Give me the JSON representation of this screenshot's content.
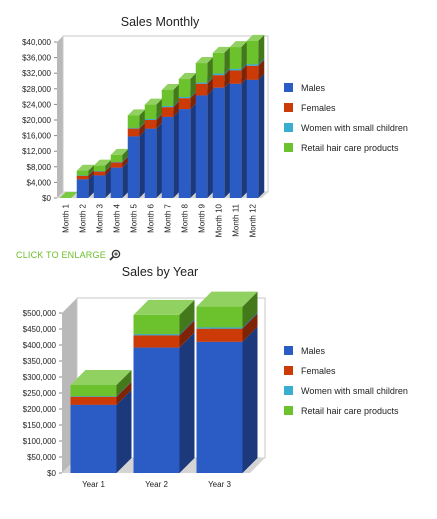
{
  "chart_data": [
    {
      "type": "bar",
      "stacked": true,
      "three_d": true,
      "title": "Sales Monthly",
      "categories": [
        "Month 1",
        "Month 2",
        "Month 3",
        "Month 4",
        "Month 5",
        "Month 6",
        "Month 7",
        "Month 8",
        "Month 9",
        "Month 10",
        "Month 11",
        "Month 12"
      ],
      "ylim": [
        0,
        40000
      ],
      "yticks": [
        "$0",
        "$4,000",
        "$8,000",
        "$12,000",
        "$16,000",
        "$20,000",
        "$24,000",
        "$28,000",
        "$32,000",
        "$36,000",
        "$40,000"
      ],
      "series": [
        {
          "name": "Males",
          "values": [
            0,
            4800,
            5800,
            7800,
            15800,
            17800,
            20800,
            22800,
            26300,
            28300,
            29300,
            30300
          ]
        },
        {
          "name": "Females",
          "values": [
            0,
            900,
            1000,
            1300,
            2000,
            2200,
            2500,
            2800,
            3000,
            3200,
            3400,
            3600
          ]
        },
        {
          "name": "Women with small children",
          "values": [
            0,
            100,
            100,
            150,
            200,
            250,
            300,
            300,
            300,
            400,
            400,
            400
          ]
        },
        {
          "name": "Retail hair care products",
          "values": [
            0,
            1200,
            1400,
            1800,
            3200,
            3700,
            4100,
            4600,
            5000,
            5300,
            5600,
            6000
          ]
        }
      ],
      "legend_position": "right",
      "grid": false
    },
    {
      "type": "bar",
      "stacked": true,
      "three_d": true,
      "title": "Sales by Year",
      "categories": [
        "Year 1",
        "Year 2",
        "Year 3"
      ],
      "ylim": [
        0,
        500000
      ],
      "yticks": [
        "$0",
        "$50,000",
        "$100,000",
        "$150,000",
        "$200,000",
        "$250,000",
        "$300,000",
        "$350,000",
        "$400,000",
        "$450,000",
        "$500,000"
      ],
      "series": [
        {
          "name": "Males",
          "values": [
            213000,
            392000,
            410000
          ]
        },
        {
          "name": "Females",
          "values": [
            25000,
            38000,
            41000
          ]
        },
        {
          "name": "Women with small children",
          "values": [
            2000,
            4000,
            4000
          ]
        },
        {
          "name": "Retail hair care products",
          "values": [
            35000,
            60000,
            65000
          ]
        }
      ],
      "legend_position": "right",
      "grid": false
    }
  ],
  "colors": {
    "series": [
      "#2b5cc6",
      "#cc3a08",
      "#3aaed0",
      "#6cc22c"
    ],
    "link": "#6bbf2a",
    "axis_text": "#222222"
  },
  "enlarge_link": {
    "label": "CLICK TO ENLARGE",
    "icon": "magnifier-plus-icon"
  }
}
